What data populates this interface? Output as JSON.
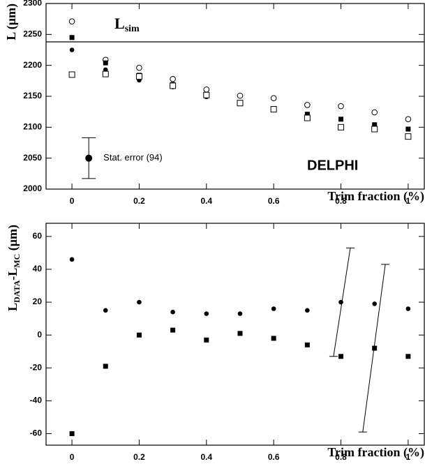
{
  "chart_data": [
    {
      "type": "scatter",
      "ylabel": "L (μm)",
      "xlabel": "Trim fraction (%)",
      "x": [
        0,
        0.1,
        0.2,
        0.3,
        0.4,
        0.5,
        0.6,
        0.7,
        0.8,
        0.9,
        1
      ],
      "series": [
        {
          "marker": "open-circle",
          "color": "#000000",
          "values": [
            2271,
            2209,
            2196,
            2178,
            2161,
            2151,
            2147,
            2136,
            2134,
            2124,
            2113
          ]
        },
        {
          "marker": "filled-square",
          "color": "#000000",
          "values": [
            2245,
            2204,
            2184,
            2169,
            2153,
            2140,
            2130,
            2121,
            2113,
            2104,
            2097
          ]
        },
        {
          "marker": "filled-circle",
          "color": "#000000",
          "values": [
            2225,
            2193,
            2176,
            2165,
            2149,
            2138,
            2130,
            2117,
            2113,
            2102,
            2097
          ]
        },
        {
          "marker": "open-square",
          "color": "#000000",
          "values": [
            2185,
            2186,
            2182,
            2167,
            2152,
            2139,
            2129,
            2115,
            2100,
            2097,
            2085
          ]
        }
      ],
      "xlim": [
        -0.077,
        1.048
      ],
      "ylim": [
        2000,
        2300
      ],
      "xticks": [
        0,
        0.2,
        0.4,
        0.6,
        0.8,
        1
      ],
      "yticks": [
        2000,
        2050,
        2100,
        2150,
        2200,
        2250,
        2300
      ],
      "reference_line": {
        "value": 2238,
        "label": "L",
        "label_sub": "sim"
      },
      "error_legend": {
        "x": 0.05,
        "y": 2050,
        "error": 33,
        "label": "Stat. error (94)"
      },
      "annotation": "DELPHI"
    },
    {
      "type": "scatter",
      "ylabel": {
        "l1": "L",
        "sub1": "DATA",
        "l2": "-L",
        "sub2": "MC",
        "unit": " (μm)"
      },
      "xlabel": "Trim fraction (%)",
      "x": [
        0,
        0.1,
        0.2,
        0.3,
        0.4,
        0.5,
        0.6,
        0.7,
        0.8,
        0.9,
        1
      ],
      "series": [
        {
          "marker": "filled-circle",
          "color": "#000000",
          "values": [
            46,
            15,
            20,
            14,
            13,
            13,
            16,
            15,
            20,
            19,
            16
          ]
        },
        {
          "marker": "filled-square",
          "color": "#000000",
          "values": [
            -60,
            -19,
            0,
            3,
            -3,
            1,
            -2,
            -6,
            -13,
            -8,
            -13
          ]
        }
      ],
      "xlim": [
        -0.077,
        1.048
      ],
      "ylim": [
        -67,
        68
      ],
      "xticks": [
        0,
        0.2,
        0.4,
        0.6,
        0.8,
        1
      ],
      "yticks": [
        -60,
        -40,
        -20,
        0,
        20,
        40,
        60
      ],
      "slanted_error_bars": [
        {
          "x": [
            0.778,
            0.828
          ],
          "y": [
            -13,
            53
          ]
        },
        {
          "x": [
            0.865,
            0.932
          ],
          "y": [
            -59,
            43
          ]
        }
      ]
    }
  ]
}
